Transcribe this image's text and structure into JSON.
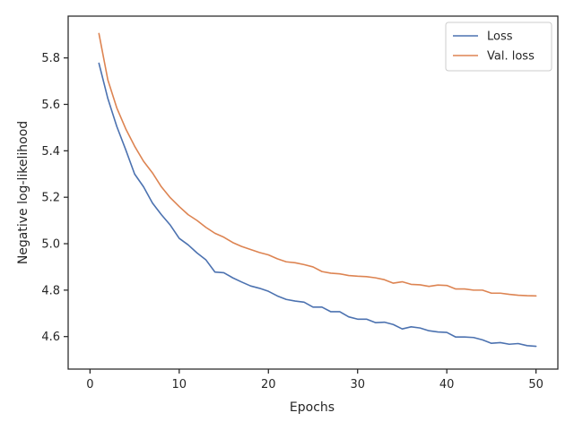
{
  "chart_data": {
    "type": "line",
    "title": "",
    "xlabel": "Epochs",
    "ylabel": "Negative log-likelihood",
    "xlim": [
      -2.45,
      52.45
    ],
    "ylim": [
      4.46,
      5.98
    ],
    "xticks": [
      0,
      10,
      20,
      30,
      40,
      50
    ],
    "yticks": [
      4.6,
      4.8,
      5.0,
      5.2,
      5.4,
      5.6,
      5.8
    ],
    "xtick_labels": [
      "0",
      "10",
      "20",
      "30",
      "40",
      "50"
    ],
    "ytick_labels": [
      "4.6",
      "4.8",
      "5.0",
      "5.2",
      "5.4",
      "5.6",
      "5.8"
    ],
    "grid": false,
    "legend_position": "top-right",
    "x": [
      1,
      2,
      3,
      4,
      5,
      6,
      7,
      8,
      9,
      10,
      11,
      12,
      13,
      14,
      15,
      16,
      17,
      18,
      19,
      20,
      21,
      22,
      23,
      24,
      25,
      26,
      27,
      28,
      29,
      30,
      31,
      32,
      33,
      34,
      35,
      36,
      37,
      38,
      39,
      40,
      41,
      42,
      43,
      44,
      45,
      46,
      47,
      48,
      49,
      50
    ],
    "series": [
      {
        "name": "Loss",
        "color": "#4c72b0",
        "values": [
          5.777,
          5.625,
          5.505,
          5.405,
          5.3,
          5.245,
          5.175,
          5.125,
          5.08,
          5.023,
          4.995,
          4.96,
          4.93,
          4.878,
          4.875,
          4.853,
          4.835,
          4.818,
          4.808,
          4.795,
          4.775,
          4.76,
          4.753,
          4.748,
          4.727,
          4.727,
          4.707,
          4.707,
          4.685,
          4.675,
          4.675,
          4.66,
          4.662,
          4.652,
          4.633,
          4.642,
          4.637,
          4.625,
          4.62,
          4.618,
          4.598,
          4.598,
          4.596,
          4.586,
          4.571,
          4.574,
          4.567,
          4.57,
          4.561,
          4.558
        ]
      },
      {
        "name": "Val. loss",
        "color": "#dd8452",
        "values": [
          5.905,
          5.705,
          5.585,
          5.495,
          5.42,
          5.355,
          5.305,
          5.245,
          5.198,
          5.16,
          5.125,
          5.1,
          5.07,
          5.045,
          5.028,
          5.005,
          4.988,
          4.975,
          4.962,
          4.952,
          4.935,
          4.922,
          4.918,
          4.91,
          4.9,
          4.88,
          4.873,
          4.87,
          4.863,
          4.86,
          4.858,
          4.853,
          4.845,
          4.83,
          4.836,
          4.825,
          4.823,
          4.816,
          4.822,
          4.82,
          4.805,
          4.805,
          4.8,
          4.8,
          4.787,
          4.787,
          4.782,
          4.778,
          4.776,
          4.775
        ]
      }
    ]
  }
}
